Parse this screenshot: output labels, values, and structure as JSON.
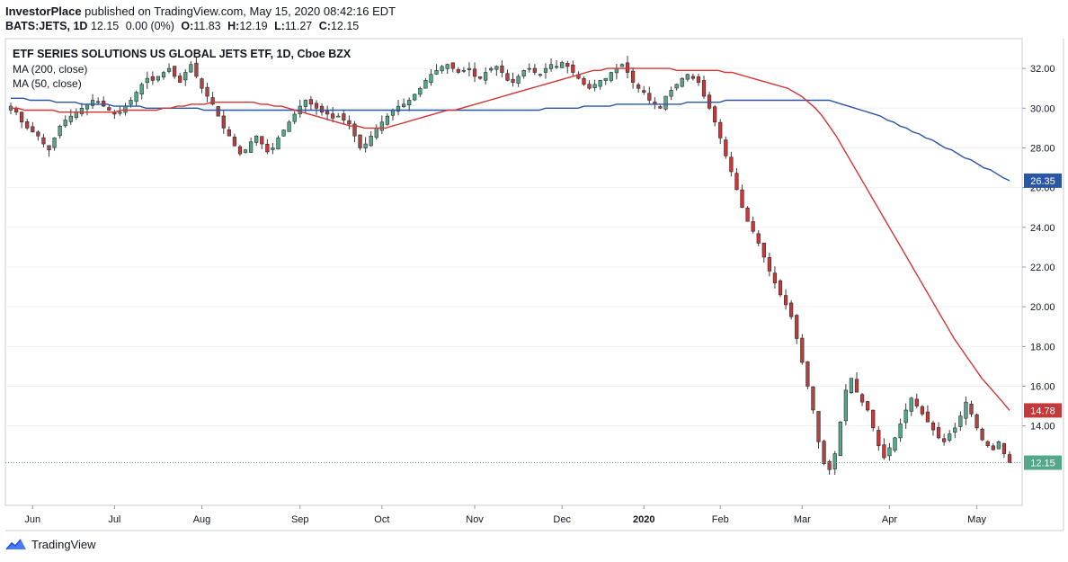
{
  "header": {
    "publisher": "InvestorPlace",
    "published_text": "published on TradingView.com, May 15, 2020 08:42:16 EDT",
    "symbol": "BATS:JETS, 1D",
    "last": "12.15",
    "change": "0.00 (0%)",
    "open_label": "O:",
    "open": "11.83",
    "high_label": "H:",
    "high": "12.19",
    "low_label": "L:",
    "low": "11.27",
    "close_label": "C:",
    "close": "12.15"
  },
  "footer": {
    "brand": "TradingView"
  },
  "colors": {
    "up": "#53a88c",
    "down": "#c43a3a",
    "ma50": "#d43434",
    "ma200": "#2a56a8",
    "grid": "#eef0f3"
  },
  "chart_data": {
    "type": "candlestick",
    "title": "ETF SERIES SOLUTIONS US GLOBAL JETS ETF, 1D, Cboe BZX",
    "legend": [
      "MA (200, close)",
      "MA (50, close)"
    ],
    "legend_position": "top-left",
    "y_range": [
      10.0,
      33.5
    ],
    "y_ticks": [
      "32.00",
      "30.00",
      "28.00",
      "26.00",
      "24.00",
      "22.00",
      "20.00",
      "18.00",
      "16.00",
      "14.00"
    ],
    "x_labels": [
      "Jun",
      "Jul",
      "Aug",
      "Sep",
      "Oct",
      "Nov",
      "Dec",
      "2020",
      "Feb",
      "Mar",
      "Apr",
      "May"
    ],
    "price_labels": [
      {
        "label": "26.35",
        "value": 26.35,
        "color": "#2a56a8"
      },
      {
        "label": "14.78",
        "value": 14.78,
        "color": "#c43a3a"
      },
      {
        "label": "12.15",
        "value": 12.15,
        "color": "#53a88c"
      }
    ],
    "last_price_line": 12.15,
    "ohlc_period": "2019-05-24 to 2020-05-14",
    "closes": [
      30.1,
      29.8,
      29.3,
      29.0,
      28.8,
      28.6,
      28.2,
      27.9,
      28.5,
      29.1,
      29.4,
      29.6,
      29.8,
      30.0,
      30.2,
      30.4,
      30.3,
      30.1,
      29.9,
      29.7,
      29.8,
      30.1,
      30.4,
      30.8,
      31.2,
      31.5,
      31.4,
      31.6,
      31.8,
      32.0,
      31.6,
      31.3,
      31.8,
      32.2,
      31.6,
      31.0,
      30.6,
      30.2,
      29.6,
      29.0,
      28.6,
      28.1,
      27.7,
      27.9,
      28.3,
      28.6,
      28.2,
      27.8,
      28.0,
      28.5,
      28.9,
      29.3,
      29.7,
      30.1,
      30.4,
      30.2,
      30.0,
      29.8,
      29.7,
      29.5,
      29.6,
      29.4,
      29.2,
      28.6,
      28.0,
      28.2,
      28.6,
      29.0,
      29.3,
      29.6,
      29.9,
      30.1,
      30.2,
      30.4,
      30.7,
      31.0,
      31.4,
      31.7,
      31.9,
      32.1,
      32.2,
      32.0,
      31.8,
      31.9,
      32.0,
      31.6,
      31.5,
      31.8,
      32.0,
      32.1,
      31.8,
      31.4,
      31.3,
      31.6,
      31.9,
      32.0,
      31.8,
      31.7,
      32.0,
      32.2,
      32.1,
      32.3,
      32.1,
      31.8,
      31.5,
      31.2,
      31.0,
      31.2,
      31.4,
      31.5,
      31.8,
      32.0,
      32.2,
      31.8,
      31.3,
      31.0,
      30.8,
      30.4,
      30.2,
      30.0,
      30.6,
      30.9,
      31.2,
      31.5,
      31.7,
      31.5,
      31.3,
      30.6,
      30.0,
      29.3,
      28.5,
      27.6,
      26.8,
      25.9,
      25.0,
      24.3,
      23.8,
      23.2,
      22.5,
      21.8,
      21.2,
      20.6,
      20.1,
      19.5,
      18.4,
      17.2,
      16.0,
      14.8,
      13.2,
      12.1,
      11.8,
      12.6,
      14.2,
      15.8,
      16.4,
      15.7,
      15.2,
      14.8,
      13.9,
      13.0,
      12.4,
      12.9,
      13.4,
      14.1,
      14.8,
      15.4,
      15.0,
      14.6,
      14.2,
      13.8,
      13.4,
      13.2,
      13.6,
      13.9,
      14.5,
      15.2,
      14.6,
      13.9,
      13.3,
      13.0,
      12.8,
      13.2,
      12.6,
      12.15
    ],
    "ma50": [
      30.0,
      30.0,
      29.9,
      29.9,
      29.9,
      29.9,
      29.9,
      29.8,
      29.8,
      29.8,
      29.8,
      29.8,
      29.8,
      29.8,
      29.8,
      29.8,
      29.9,
      29.9,
      29.9,
      29.9,
      29.9,
      29.9,
      30.0,
      30.0,
      30.1,
      30.1,
      30.2,
      30.2,
      30.2,
      30.3,
      30.3,
      30.3,
      30.3,
      30.3,
      30.3,
      30.3,
      30.2,
      30.2,
      30.1,
      30.1,
      30.0,
      29.9,
      29.8,
      29.7,
      29.6,
      29.5,
      29.4,
      29.3,
      29.2,
      29.1,
      29.1,
      29.0,
      29.0,
      29.0,
      29.0,
      29.1,
      29.2,
      29.3,
      29.4,
      29.5,
      29.6,
      29.7,
      29.8,
      29.9,
      29.9,
      30.0,
      30.1,
      30.2,
      30.3,
      30.4,
      30.5,
      30.6,
      30.7,
      30.8,
      30.9,
      31.0,
      31.1,
      31.2,
      31.3,
      31.4,
      31.5,
      31.6,
      31.7,
      31.8,
      31.9,
      31.9,
      32.0,
      32.0,
      32.0,
      32.0,
      32.0,
      32.0,
      32.0,
      32.0,
      32.0,
      32.0,
      31.9,
      31.9,
      31.9,
      31.9,
      31.9,
      31.9,
      31.9,
      31.8,
      31.8,
      31.7,
      31.6,
      31.5,
      31.4,
      31.3,
      31.2,
      31.1,
      31.0,
      30.8,
      30.6,
      30.3,
      30.0,
      29.6,
      29.1,
      28.6,
      28.0,
      27.4,
      26.8,
      26.2,
      25.6,
      25.0,
      24.4,
      23.8,
      23.2,
      22.6,
      22.0,
      21.4,
      20.8,
      20.2,
      19.6,
      19.0,
      18.4,
      17.9,
      17.4,
      16.9,
      16.4,
      16.0,
      15.6,
      15.2,
      14.78
    ],
    "ma50_start_index": 50,
    "ma200": [
      30.5,
      30.5,
      30.5,
      30.4,
      30.4,
      30.4,
      30.4,
      30.3,
      30.3,
      30.3,
      30.3,
      30.2,
      30.2,
      30.2,
      30.2,
      30.2,
      30.1,
      30.1,
      30.1,
      30.1,
      30.1,
      30.0,
      30.0,
      30.0,
      30.0,
      30.0,
      30.0,
      30.0,
      30.0,
      30.0,
      29.9,
      29.9,
      29.9,
      29.9,
      29.9,
      29.9,
      29.9,
      29.9,
      29.9,
      29.9,
      29.9,
      29.9,
      29.9,
      29.9,
      29.9,
      29.9,
      29.9,
      29.9,
      29.9,
      29.9,
      29.9,
      29.9,
      29.9,
      29.9,
      29.9,
      29.9,
      29.9,
      29.9,
      29.9,
      29.9,
      29.9,
      29.9,
      29.9,
      29.9,
      29.9,
      29.9,
      29.9,
      29.9,
      29.9,
      29.9,
      29.9,
      29.9,
      29.9,
      29.9,
      29.9,
      29.9,
      29.9,
      29.9,
      29.9,
      29.9,
      29.9,
      29.9,
      29.9,
      30.0,
      30.0,
      30.0,
      30.0,
      30.0,
      30.0,
      30.1,
      30.1,
      30.1,
      30.1,
      30.1,
      30.2,
      30.2,
      30.2,
      30.2,
      30.2,
      30.2,
      30.2,
      30.2,
      30.2,
      30.2,
      30.2,
      30.3,
      30.3,
      30.3,
      30.3,
      30.3,
      30.3,
      30.4,
      30.4,
      30.4,
      30.4,
      30.4,
      30.4,
      30.4,
      30.4,
      30.4,
      30.4,
      30.4,
      30.4,
      30.4,
      30.4,
      30.4,
      30.4,
      30.4,
      30.3,
      30.2,
      30.1,
      30.0,
      29.9,
      29.8,
      29.7,
      29.6,
      29.4,
      29.3,
      29.1,
      29.0,
      28.8,
      28.7,
      28.5,
      28.4,
      28.2,
      28.0,
      27.9,
      27.7,
      27.5,
      27.4,
      27.2,
      27.0,
      26.9,
      26.7,
      26.5,
      26.35
    ],
    "ma200_start_index": 38
  }
}
